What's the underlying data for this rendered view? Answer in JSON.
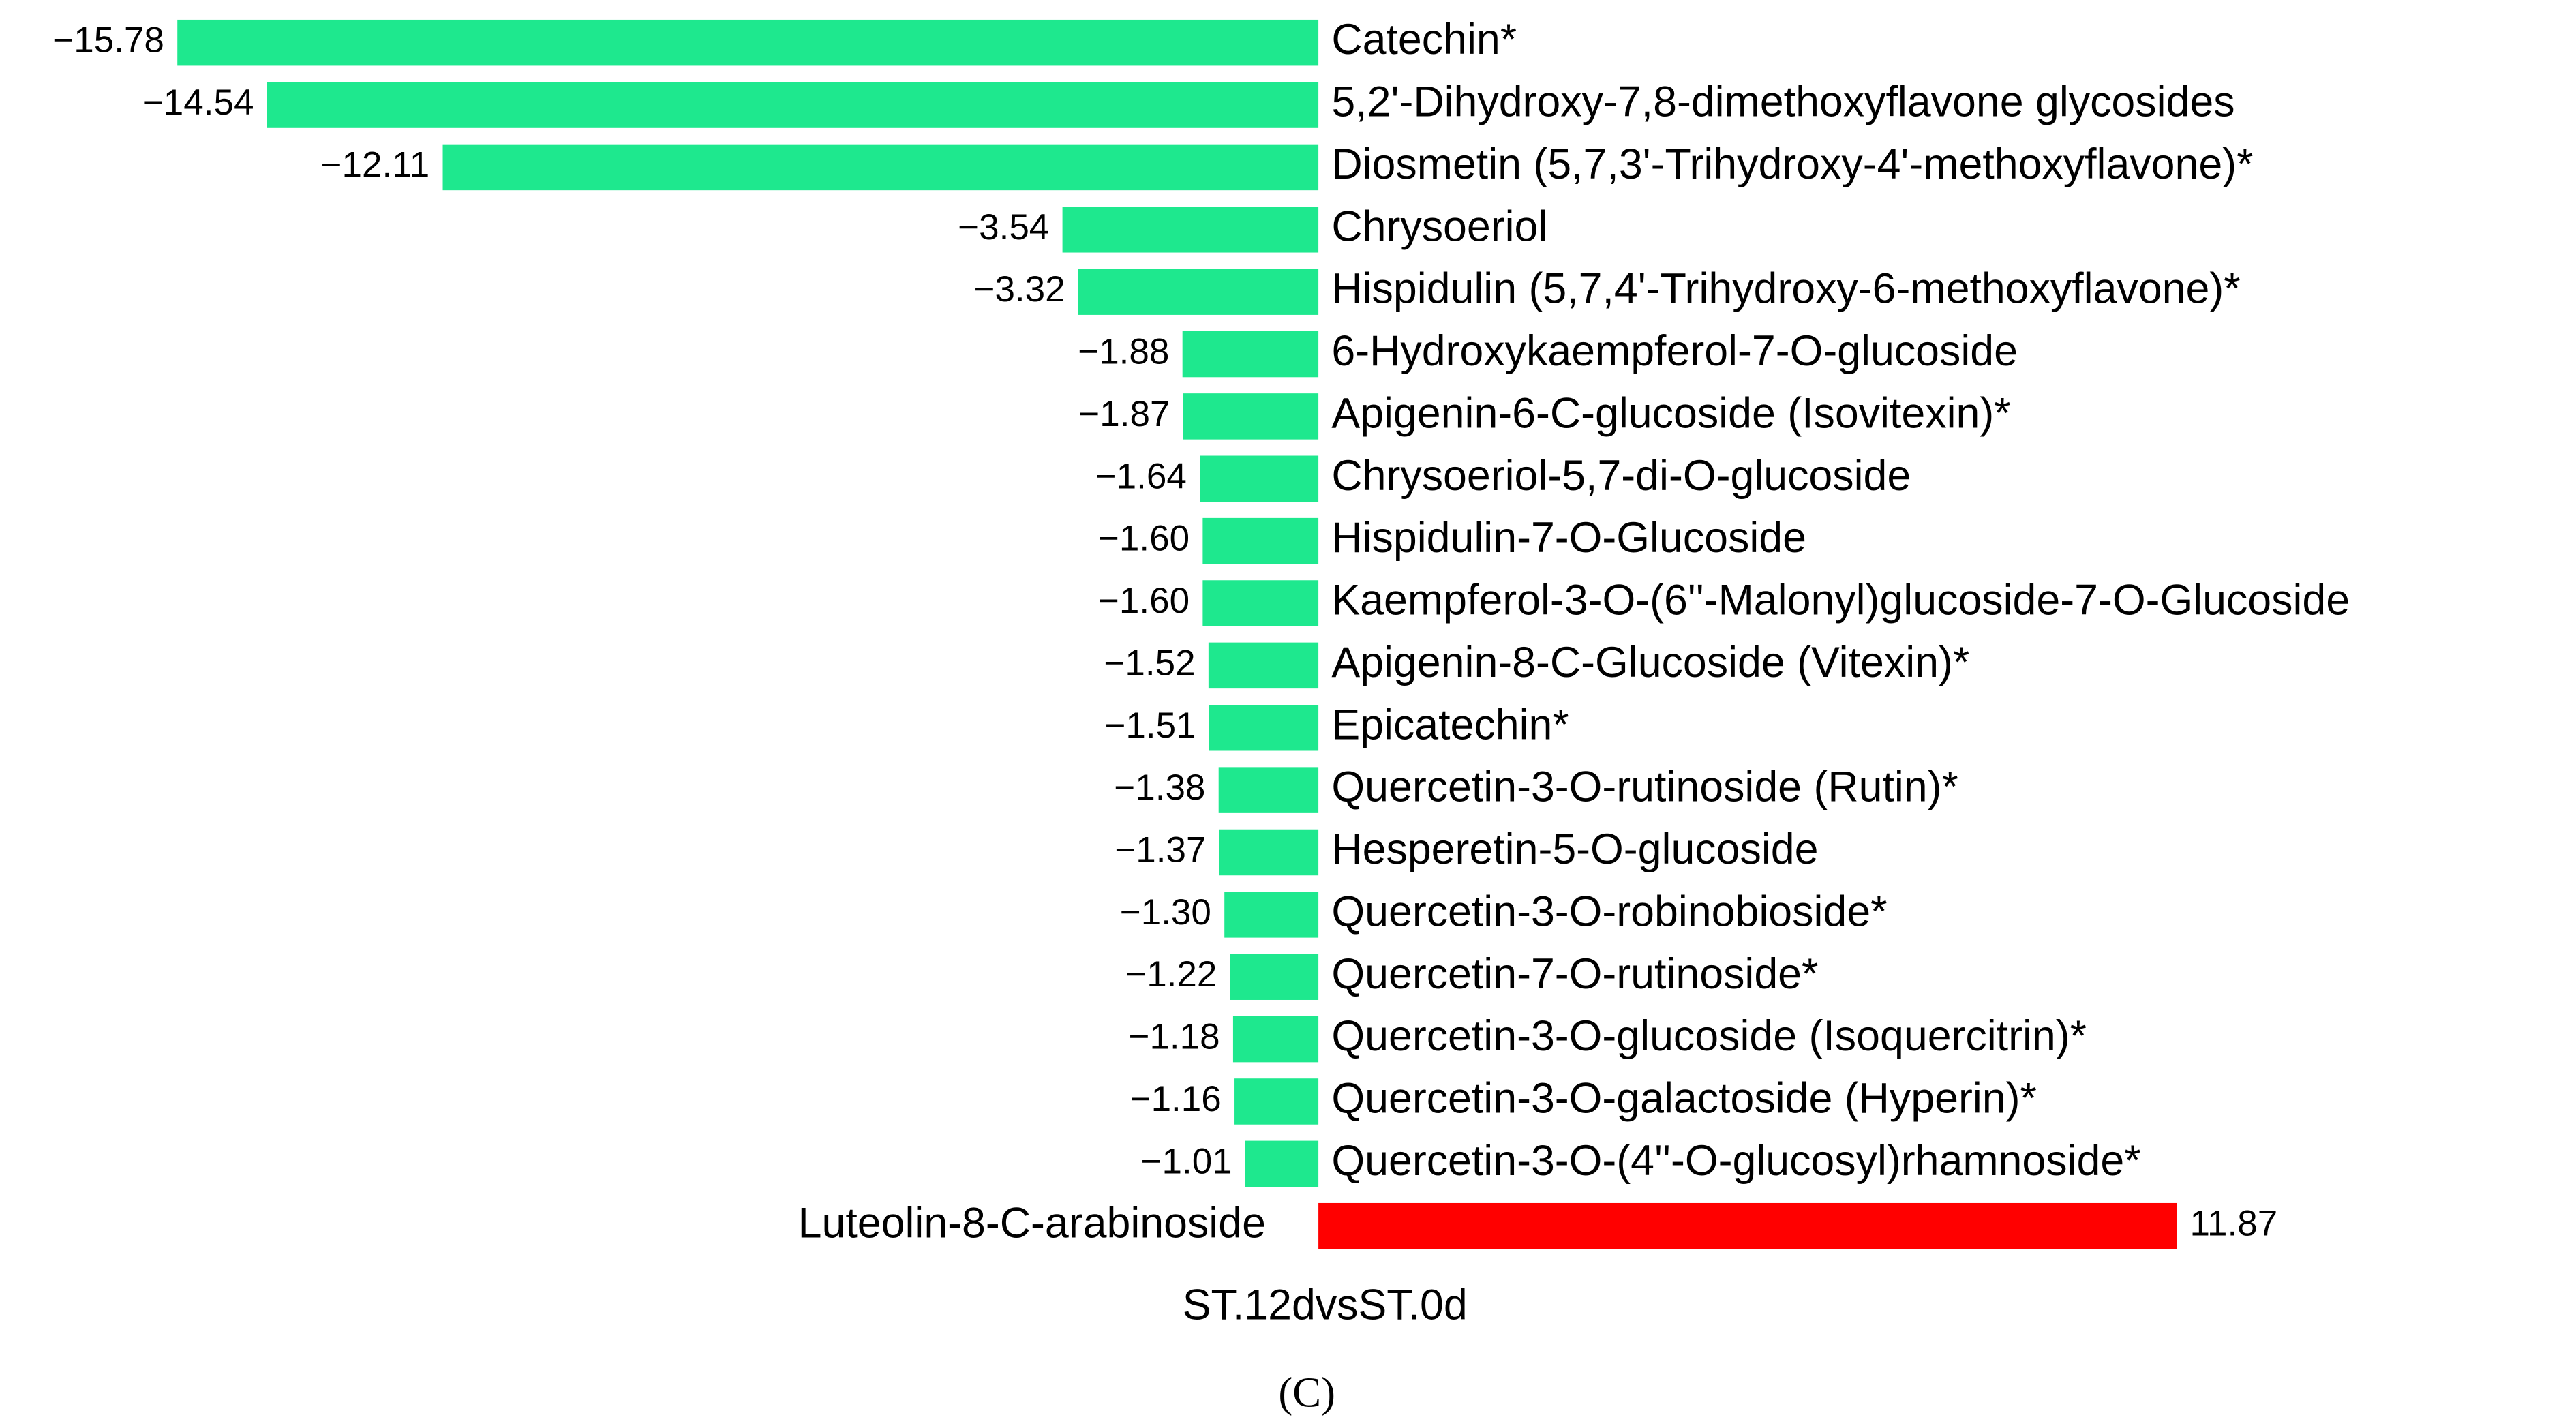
{
  "chart_data": {
    "type": "diverging-bar",
    "categories": [
      "Catechin*",
      "5,2'-Dihydroxy-7,8-dimethoxyflavone glycosides",
      "Diosmetin (5,7,3'-Trihydroxy-4'-methoxyflavone)*",
      "Chrysoeriol",
      "Hispidulin (5,7,4'-Trihydroxy-6-methoxyflavone)*",
      "6-Hydroxykaempferol-7-O-glucoside",
      "Apigenin-6-C-glucoside (Isovitexin)*",
      "Chrysoeriol-5,7-di-O-glucoside",
      "Hispidulin-7-O-Glucoside",
      "Kaempferol-3-O-(6''-Malonyl)glucoside-7-O-Glucoside",
      "Apigenin-8-C-Glucoside (Vitexin)*",
      "Epicatechin*",
      "Quercetin-3-O-rutinoside (Rutin)*",
      "Hesperetin-5-O-glucoside",
      "Quercetin-3-O-robinobioside*",
      "Quercetin-7-O-rutinoside*",
      "Quercetin-3-O-glucoside (Isoquercitrin)*",
      "Quercetin-3-O-galactoside (Hyperin)*",
      "Quercetin-3-O-(4''-O-glucosyl)rhamnoside*",
      "Luteolin-8-C-arabinoside"
    ],
    "values": [
      -15.78,
      -14.54,
      -12.11,
      -3.54,
      -3.32,
      -1.88,
      -1.87,
      -1.64,
      -1.6,
      -1.6,
      -1.52,
      -1.51,
      -1.38,
      -1.37,
      -1.3,
      -1.22,
      -1.18,
      -1.16,
      -1.01,
      11.87
    ],
    "value_labels": [
      "−15.78",
      "−14.54",
      "−12.11",
      "−3.54",
      "−3.32",
      "−1.88",
      "−1.87",
      "−1.64",
      "−1.60",
      "−1.60",
      "−1.52",
      "−1.51",
      "−1.38",
      "−1.37",
      "−1.30",
      "−1.22",
      "−1.18",
      "−1.16",
      "−1.01",
      "11.87"
    ],
    "color_negative": "#1ee88e",
    "color_positive": "#ff0000",
    "xlim": [
      -16,
      12
    ],
    "xlabel": "ST.12dvsST.0d",
    "caption": "(C)"
  }
}
